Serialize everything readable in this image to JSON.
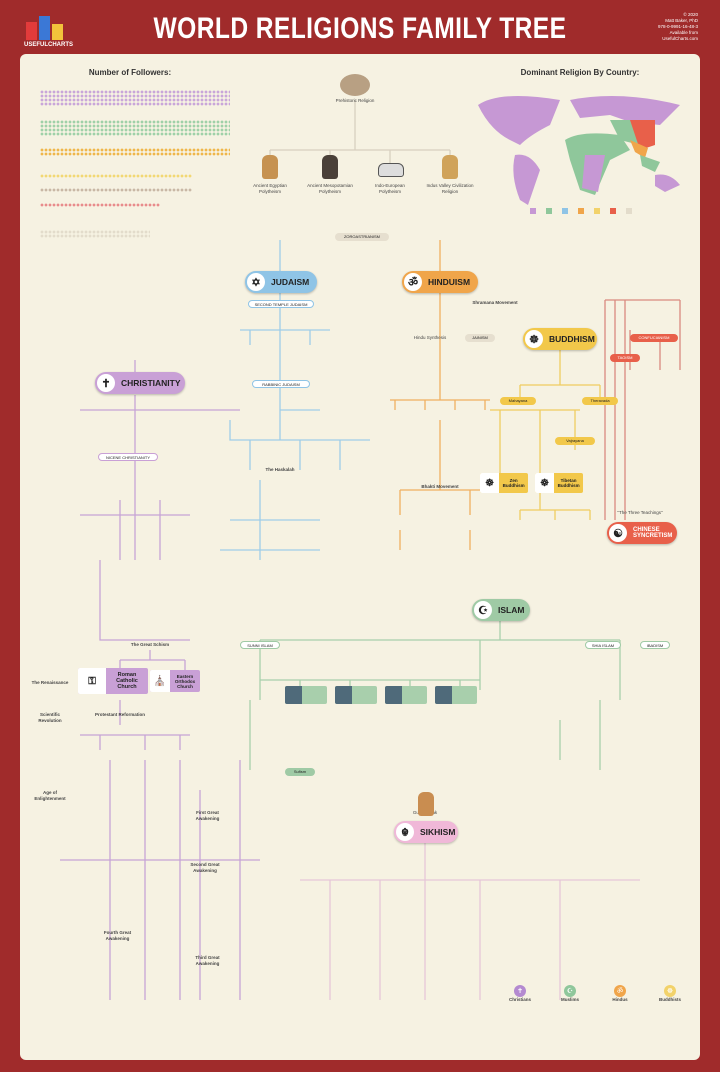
{
  "header": {
    "brand": "USEFULCHARTS",
    "title": "WORLD RELIGIONS FAMILY TREE",
    "meta": [
      "© 2020",
      "Matt Baker, PhD",
      "978-0-9991-16-48-3",
      "Available from",
      "UsefulCharts.com"
    ]
  },
  "followers": {
    "heading": "Number of Followers:",
    "rows": [
      {
        "color": "#c9a6d9",
        "fill": 0.95
      },
      {
        "color": "#9fd1a8",
        "fill": 0.95
      },
      {
        "color": "#efb64a",
        "fill": 0.95
      },
      {
        "color": "#f2d873",
        "fill": 0.76
      },
      {
        "color": "#c9b8a5",
        "fill": 0.76
      },
      {
        "color": "#e88c8c",
        "fill": 0.6
      },
      {
        "color": "#e3dccb",
        "fill": 0.55
      }
    ]
  },
  "map": {
    "heading": "Dominant Religion By Country:",
    "legend": [
      {
        "color": "#c698d4"
      },
      {
        "color": "#8fc79b"
      },
      {
        "color": "#8fc4e6"
      },
      {
        "color": "#f0a54a"
      },
      {
        "color": "#f2d26a"
      },
      {
        "color": "#e8604a"
      },
      {
        "color": "#e3dccb"
      }
    ]
  },
  "ancient": [
    "Prehistoric Religion",
    "Ancient Egyptian Polytheism",
    "Ancient Mesopotamian Polytheism",
    "Indo-European Polytheism",
    "Indus Valley Civilization Religion"
  ],
  "religions": {
    "judaism": "JUDAISM",
    "hinduism": "HINDUISM",
    "buddhism": "BUDDHISM",
    "christianity": "CHRISTIANITY",
    "islam": "ISLAM",
    "sikhism": "SIKHISM",
    "chinese": "CHINESE SYNCRETISM"
  },
  "nodes": {
    "zoroastrianism": "ZOROASTRIANISM",
    "jainism": "JAINISM",
    "confucianism": "CONFUCIANISM",
    "taoism": "TAOISM",
    "second_temple": "SECOND TEMPLE JUDAISM",
    "rabbinic": "RABBINIC JUDAISM",
    "haskalah": "The Haskalah",
    "nicene": "NICENE CHRISTIANITY",
    "great_schism": "The Great Schism",
    "catholic": "Roman Catholic Church",
    "orthodox": "Eastern Orthodox Church",
    "reformation": "Protestant Reformation",
    "renaissance": "The Renaissance",
    "scientific": "Scientific Revolution",
    "enlightenment": "Age of Enlightenment",
    "first_awakening": "First Great Awakening",
    "second_awakening": "Second Great Awakening",
    "third_awakening": "Third Great Awakening",
    "fourth_awakening": "Fourth Great Awakening",
    "mahayana": "Mahayana",
    "theravada": "Theravada",
    "vajrayana": "Vajrayana",
    "zen": "Zen Buddhism",
    "tibetan": "Tibetan Buddhism",
    "bhakti": "Bhakti Movement",
    "sunni": "SUNNI ISLAM",
    "shia": "SHIA ISLAM",
    "ibadi": "IBADISM",
    "sufism": "Sufism",
    "gurunanak": "Guru Nanak",
    "shramana": "Shramana Movement",
    "synthesis": "Hindu Synthesis",
    "folk": "\"The Three Teachings\""
  },
  "stats": [
    {
      "label": "Christians",
      "color": "#b48ad0",
      "icon": "✝"
    },
    {
      "label": "Muslims",
      "color": "#8fc79b",
      "icon": "☪"
    },
    {
      "label": "Hindus",
      "color": "#f0a54a",
      "icon": "ॐ"
    },
    {
      "label": "Buddhists",
      "color": "#f2d26a",
      "icon": "☸"
    }
  ],
  "colors": {
    "frame": "#a02b2b",
    "panel": "#f6f2e2",
    "judaism": "#8fc4e6",
    "hinduism": "#f0a54a",
    "buddhism": "#f2c84a",
    "christianity": "#c9a0d6",
    "islam": "#9fcaa5",
    "sikhism": "#f0b8d8",
    "chinese": "#e8604a"
  }
}
